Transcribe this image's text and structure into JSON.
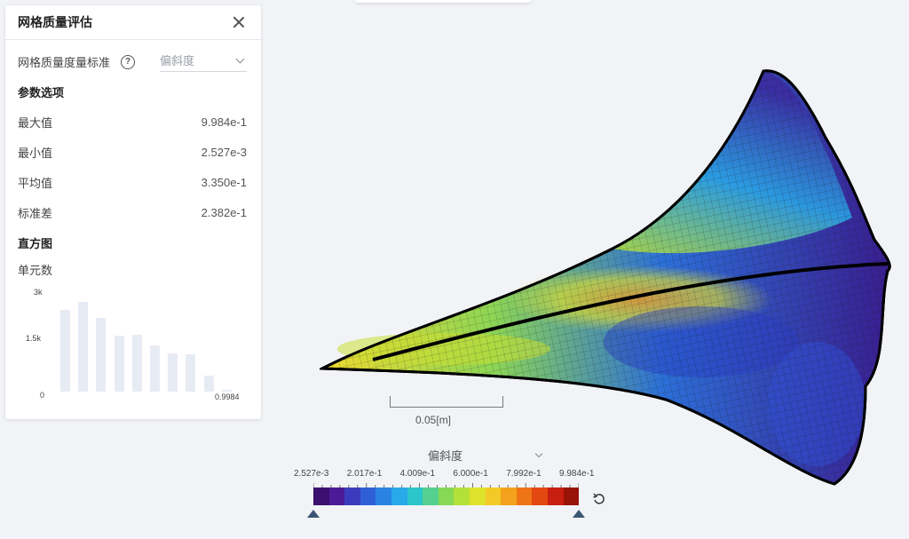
{
  "panel": {
    "title": "网格质量评估",
    "metric_label": "网格质量度量标准",
    "metric_help": "?",
    "metric_selected": "偏斜度",
    "params_title": "参数选项",
    "stats": [
      {
        "label": "最大值",
        "value": "9.984e-1"
      },
      {
        "label": "最小值",
        "value": "2.527e-3"
      },
      {
        "label": "平均值",
        "value": "3.350e-1"
      },
      {
        "label": "标准差",
        "value": "2.382e-1"
      }
    ],
    "histogram_title": "直方图",
    "histogram_unit": "单元数"
  },
  "chart_data": {
    "type": "bar",
    "ylabel": "单元数",
    "yticks": [
      "3k",
      "1.5k",
      "0"
    ],
    "ylim": [
      0,
      3000
    ],
    "x_end_label": "0.9984",
    "values": [
      2650,
      2900,
      2380,
      1820,
      1850,
      1500,
      1250,
      1220,
      520,
      60
    ]
  },
  "viewport": {
    "scale_label": "0.05[m]",
    "colormap_selected": "偏斜度",
    "colorbar_ticks": [
      "2.527e-3",
      "2.017e-1",
      "4.009e-1",
      "6.000e-1",
      "7.992e-1",
      "9.984e-1"
    ],
    "colorbar_colors": [
      "#3b0f70",
      "#4b1a96",
      "#3c3bbd",
      "#2f5fd7",
      "#2a82e3",
      "#29a9e8",
      "#2bc6c9",
      "#56d08e",
      "#86d855",
      "#b4e03a",
      "#dfe22b",
      "#f2c927",
      "#f4a21d",
      "#ef7416",
      "#e44812",
      "#c81f10",
      "#981308"
    ]
  }
}
